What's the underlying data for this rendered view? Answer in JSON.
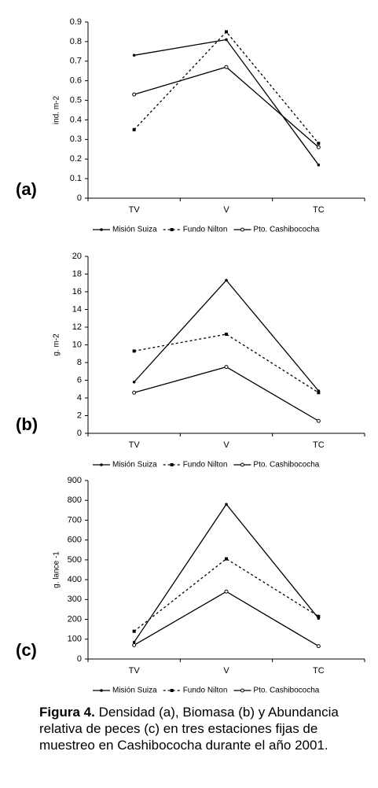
{
  "chart_data": [
    {
      "type": "line",
      "label": "(a)",
      "ylabel": "ind. m-2",
      "categories": [
        "TV",
        "V",
        "TC"
      ],
      "ylim": [
        0,
        0.9
      ],
      "yticks": [
        0,
        0.1,
        0.2,
        0.3,
        0.4,
        0.5,
        0.6,
        0.7,
        0.8,
        0.9
      ],
      "grid": false,
      "series": [
        {
          "name": "Misión Suiza",
          "color": "#000000",
          "dash": "solid",
          "marker": "dot",
          "values": [
            0.73,
            0.81,
            0.17
          ]
        },
        {
          "name": "Fundo Nilton",
          "color": "#000000",
          "dash": "dotted",
          "marker": "square",
          "values": [
            0.35,
            0.85,
            0.28
          ]
        },
        {
          "name": "Pto. Cashibococha",
          "color": "#000000",
          "dash": "solid",
          "marker": "circle",
          "values": [
            0.53,
            0.67,
            0.26
          ]
        }
      ]
    },
    {
      "type": "line",
      "label": "(b)",
      "ylabel": "g. m-2",
      "categories": [
        "TV",
        "V",
        "TC"
      ],
      "ylim": [
        0,
        20
      ],
      "yticks": [
        0,
        2,
        4,
        6,
        8,
        10,
        12,
        14,
        16,
        18,
        20
      ],
      "grid": false,
      "series": [
        {
          "name": "Misión Suiza",
          "color": "#000000",
          "dash": "solid",
          "marker": "dot",
          "values": [
            5.8,
            17.3,
            4.8
          ]
        },
        {
          "name": "Fundo Nilton",
          "color": "#000000",
          "dash": "dotted",
          "marker": "square",
          "values": [
            9.3,
            11.2,
            4.6
          ]
        },
        {
          "name": "Pto. Cashibococha",
          "color": "#000000",
          "dash": "solid",
          "marker": "circle",
          "values": [
            4.6,
            7.5,
            1.4
          ]
        }
      ]
    },
    {
      "type": "line",
      "label": "(c)",
      "ylabel": "g. lance -1",
      "categories": [
        "TV",
        "V",
        "TC"
      ],
      "ylim": [
        0,
        900
      ],
      "yticks": [
        0,
        100,
        200,
        300,
        400,
        500,
        600,
        700,
        800,
        900
      ],
      "grid": false,
      "series": [
        {
          "name": "Misión Suiza",
          "color": "#000000",
          "dash": "solid",
          "marker": "dot",
          "values": [
            85,
            780,
            205
          ]
        },
        {
          "name": "Fundo Nilton",
          "color": "#000000",
          "dash": "dotted",
          "marker": "square",
          "values": [
            140,
            505,
            215
          ]
        },
        {
          "name": "Pto. Cashibococha",
          "color": "#000000",
          "dash": "solid",
          "marker": "circle",
          "values": [
            70,
            340,
            65
          ]
        }
      ]
    }
  ],
  "caption": {
    "lead": "Figura 4.",
    "text": "Densidad (a), Biomasa (b) y Abundancia relativa de peces (c) en tres estaciones fijas de muestreo en Cashibococha durante el año 2001."
  }
}
